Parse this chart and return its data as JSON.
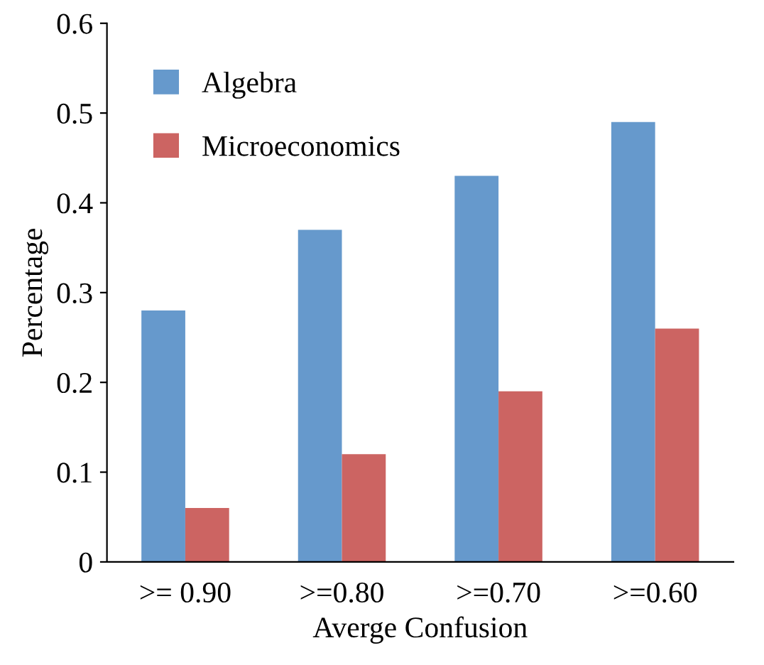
{
  "chart_data": {
    "type": "bar",
    "xlabel": "Averge Confusion",
    "ylabel": "Percentage",
    "categories": [
      ">= 0.90",
      ">=0.80",
      ">=0.70",
      ">=0.60"
    ],
    "series": [
      {
        "name": "Algebra",
        "color": "#6699cc",
        "values": [
          0.28,
          0.37,
          0.43,
          0.49
        ]
      },
      {
        "name": "Microeconomics",
        "color": "#cc6462",
        "values": [
          0.06,
          0.12,
          0.19,
          0.26
        ]
      }
    ],
    "ylim": [
      0,
      0.6
    ],
    "yticks": [
      {
        "value": 0,
        "label": "0"
      },
      0.1,
      0.2,
      0.3,
      0.4,
      0.5,
      0.6
    ],
    "grid": false,
    "legend": "top left"
  }
}
